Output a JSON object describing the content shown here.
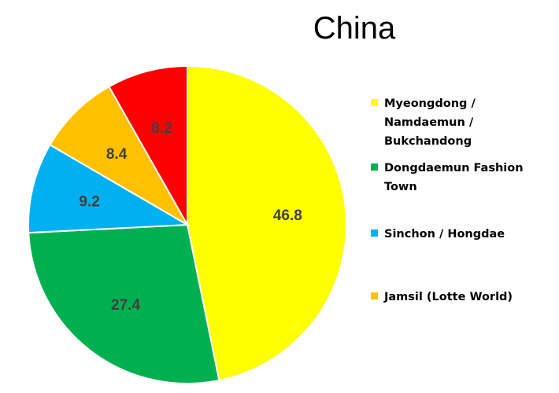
{
  "chart_data": {
    "type": "pie",
    "title": "China",
    "categories": [
      "Myeongdong / Namdaemun / Bukchandong",
      "Dongdaemun Fashion Town",
      "Sinchon / Hongdae",
      "Jamsil (Lotte World)",
      ""
    ],
    "values": [
      46.8,
      27.4,
      9.2,
      8.4,
      8.2
    ],
    "value_labels": [
      "46.8",
      "27.4",
      "9.2",
      "8.4",
      "8.2"
    ],
    "colors": [
      "#FFFF00",
      "#00B050",
      "#00B0F0",
      "#FFC000",
      "#FF0000"
    ],
    "start": "12 o'clock",
    "direction": "clockwise",
    "legend_position": "right"
  },
  "legend": [
    {
      "label": "Myeongdong / Namdaemun / Bukchandong",
      "lines": [
        "Myeongdong /",
        "Namdaemun /",
        "Bukchandong"
      ],
      "color": "#FFFF00"
    },
    {
      "label": "Dongdaemun Fashion Town",
      "lines": [
        "Dongdaemun Fashion",
        "Town"
      ],
      "color": "#00B050"
    },
    {
      "label": "Sinchon / Hongdae",
      "lines": [
        "Sinchon / Hongdae"
      ],
      "color": "#00B0F0"
    },
    {
      "label": "Jamsil (Lotte World)",
      "lines": [
        "Jamsil (Lotte World)"
      ],
      "color": "#FFC000"
    }
  ]
}
